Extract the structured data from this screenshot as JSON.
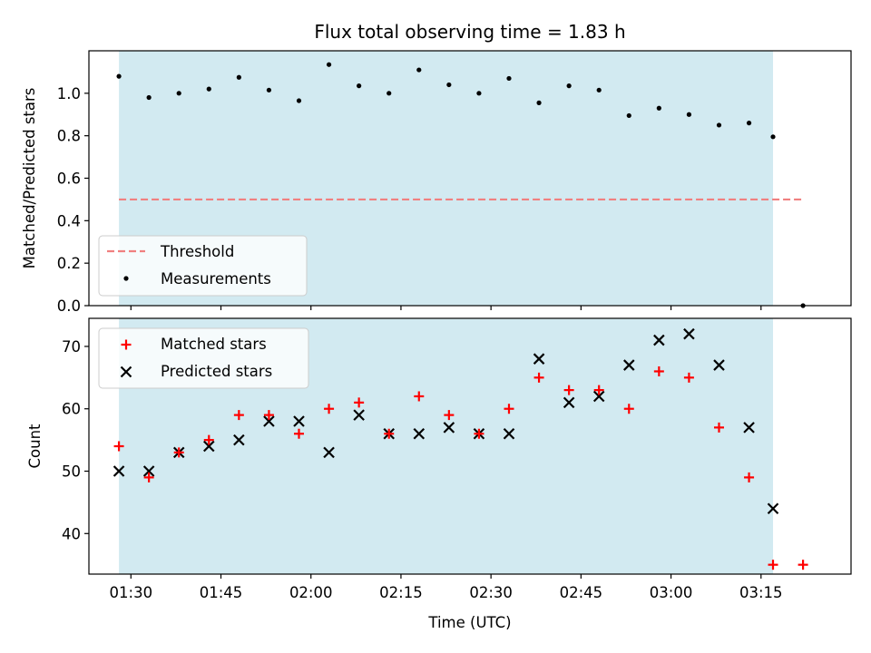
{
  "figure": {
    "title": "Flux total observing time = 1.83 h"
  },
  "colors": {
    "shade": "#add8e6",
    "threshold": "#f08080",
    "measurement": "#000000",
    "matched": "#ff0000",
    "predicted": "#000000"
  },
  "chart_data": [
    {
      "type": "scatter",
      "panel": "top",
      "title": "Flux total observing time = 1.83 h",
      "xlabel": "",
      "ylabel": "Matched/Predicted stars",
      "ylim": [
        0,
        1.2
      ],
      "yticks": [
        0.0,
        0.2,
        0.4,
        0.6,
        0.8,
        1.0
      ],
      "ytick_labels": [
        "0.0",
        "0.2",
        "0.4",
        "0.6",
        "0.8",
        "1.0"
      ],
      "xlim": [
        "01:23",
        "03:30"
      ],
      "shaded_span": [
        "01:28",
        "03:17"
      ],
      "threshold": {
        "name": "Threshold",
        "y": 0.5,
        "x_range": [
          "01:28",
          "03:22"
        ]
      },
      "legend": {
        "placement": "lower-left",
        "entries": [
          "Threshold",
          "Measurements"
        ]
      },
      "series": [
        {
          "name": "Measurements",
          "x": [
            "01:28",
            "01:33",
            "01:38",
            "01:43",
            "01:48",
            "01:53",
            "01:58",
            "02:03",
            "02:08",
            "02:13",
            "02:18",
            "02:23",
            "02:28",
            "02:33",
            "02:38",
            "02:43",
            "02:48",
            "02:53",
            "02:58",
            "03:03",
            "03:08",
            "03:13",
            "03:17",
            "03:22"
          ],
          "y": [
            1.08,
            0.98,
            1.0,
            1.02,
            1.075,
            1.015,
            0.965,
            1.135,
            1.035,
            1.0,
            1.11,
            1.04,
            1.0,
            1.07,
            0.955,
            1.035,
            1.015,
            0.895,
            0.93,
            0.9,
            0.85,
            0.86,
            0.795,
            0.0
          ]
        }
      ]
    },
    {
      "type": "scatter",
      "panel": "bottom",
      "xlabel": "Time (UTC)",
      "ylabel": "Count",
      "ylim": [
        33.5,
        74.5
      ],
      "yticks": [
        40,
        50,
        60,
        70
      ],
      "ytick_labels": [
        "40",
        "50",
        "60",
        "70"
      ],
      "xlim": [
        "01:23",
        "03:30"
      ],
      "xticks": [
        "01:30",
        "01:45",
        "02:00",
        "02:15",
        "02:30",
        "02:45",
        "03:00",
        "03:15"
      ],
      "xtick_labels": [
        "01:30",
        "01:45",
        "02:00",
        "02:15",
        "02:30",
        "02:45",
        "03:00",
        "03:15"
      ],
      "shaded_span": [
        "01:28",
        "03:17"
      ],
      "legend": {
        "placement": "upper-left",
        "entries": [
          "Matched stars",
          "Predicted stars"
        ]
      },
      "series": [
        {
          "name": "Matched stars",
          "marker": "plus",
          "x": [
            "01:28",
            "01:33",
            "01:38",
            "01:43",
            "01:48",
            "01:53",
            "01:58",
            "02:03",
            "02:08",
            "02:13",
            "02:18",
            "02:23",
            "02:28",
            "02:33",
            "02:38",
            "02:43",
            "02:48",
            "02:53",
            "02:58",
            "03:03",
            "03:08",
            "03:13",
            "03:17",
            "03:22"
          ],
          "y": [
            54,
            49,
            53,
            55,
            59,
            59,
            56,
            60,
            61,
            56,
            62,
            59,
            56,
            60,
            65,
            63,
            63,
            60,
            66,
            65,
            57,
            49,
            35,
            35
          ]
        },
        {
          "name": "Predicted stars",
          "marker": "x",
          "x": [
            "01:28",
            "01:33",
            "01:38",
            "01:43",
            "01:48",
            "01:53",
            "01:58",
            "02:03",
            "02:08",
            "02:13",
            "02:18",
            "02:23",
            "02:28",
            "02:33",
            "02:38",
            "02:43",
            "02:48",
            "02:53",
            "02:58",
            "03:03",
            "03:08",
            "03:13",
            "03:17"
          ],
          "y": [
            50,
            50,
            53,
            54,
            55,
            58,
            58,
            53,
            59,
            56,
            56,
            57,
            56,
            56,
            68,
            61,
            62,
            67,
            71,
            72,
            67,
            57,
            44
          ]
        }
      ]
    }
  ]
}
